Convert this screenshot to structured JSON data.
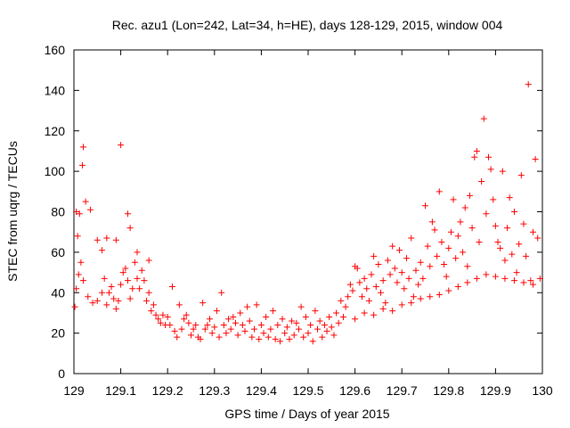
{
  "chart_data": {
    "type": "scatter",
    "title": "Rec. azu1 (Lon=242, Lat=34, h=HE), days 128-129, 2015, window 004",
    "xlabel": "GPS time / Days of year 2015",
    "ylabel": "STEC from uqrg / TECUs",
    "xlim": [
      129,
      130
    ],
    "ylim": [
      0,
      160
    ],
    "xticks": [
      "129",
      "129.1",
      "129.2",
      "129.3",
      "129.4",
      "129.5",
      "129.6",
      "129.7",
      "129.8",
      "129.9",
      "130"
    ],
    "yticks": [
      "0",
      "20",
      "40",
      "60",
      "80",
      "100",
      "120",
      "140",
      "160"
    ],
    "marker": "+",
    "color": "#ff0000",
    "grid": false,
    "legend": "none",
    "series": [
      {
        "points": [
          [
            129.005,
            80
          ],
          [
            129.008,
            68
          ],
          [
            129.012,
            79
          ],
          [
            129.018,
            103
          ],
          [
            129.02,
            112
          ],
          [
            129.025,
            85
          ],
          [
            129.035,
            81
          ],
          [
            129.05,
            66
          ],
          [
            129.06,
            61
          ],
          [
            129.07,
            67
          ],
          [
            129.09,
            66
          ],
          [
            129.1,
            113
          ],
          [
            129.115,
            79
          ],
          [
            129.12,
            72
          ],
          [
            129.135,
            60
          ],
          [
            129.16,
            56
          ],
          [
            129.002,
            33
          ],
          [
            129.005,
            42
          ],
          [
            129.01,
            49
          ],
          [
            129.015,
            55
          ],
          [
            129.02,
            46
          ],
          [
            129.03,
            38
          ],
          [
            129.04,
            35
          ],
          [
            129.05,
            36
          ],
          [
            129.06,
            40
          ],
          [
            129.065,
            47
          ],
          [
            129.07,
            34
          ],
          [
            129.075,
            40
          ],
          [
            129.08,
            43
          ],
          [
            129.085,
            37
          ],
          [
            129.09,
            32
          ],
          [
            129.095,
            36
          ],
          [
            129.1,
            44
          ],
          [
            129.105,
            50
          ],
          [
            129.11,
            52
          ],
          [
            129.115,
            46
          ],
          [
            129.12,
            37
          ],
          [
            129.125,
            42
          ],
          [
            129.13,
            55
          ],
          [
            129.135,
            47
          ],
          [
            129.14,
            42
          ],
          [
            129.145,
            51
          ],
          [
            129.15,
            46
          ],
          [
            129.155,
            36
          ],
          [
            129.16,
            40
          ],
          [
            129.165,
            31
          ],
          [
            129.17,
            34
          ],
          [
            129.175,
            29
          ],
          [
            129.18,
            27
          ],
          [
            129.185,
            25
          ],
          [
            129.19,
            29
          ],
          [
            129.195,
            24
          ],
          [
            129.2,
            28
          ],
          [
            129.205,
            24
          ],
          [
            129.21,
            43
          ],
          [
            129.215,
            21
          ],
          [
            129.22,
            18
          ],
          [
            129.225,
            34
          ],
          [
            129.23,
            22
          ],
          [
            129.235,
            27
          ],
          [
            129.24,
            29
          ],
          [
            129.245,
            25
          ],
          [
            129.25,
            19
          ],
          [
            129.255,
            22
          ],
          [
            129.26,
            24
          ],
          [
            129.265,
            18
          ],
          [
            129.27,
            17
          ],
          [
            129.275,
            35
          ],
          [
            129.28,
            22
          ],
          [
            129.285,
            24
          ],
          [
            129.29,
            27
          ],
          [
            129.295,
            20
          ],
          [
            129.3,
            23
          ],
          [
            129.305,
            31
          ],
          [
            129.31,
            18
          ],
          [
            129.315,
            40
          ],
          [
            129.32,
            24
          ],
          [
            129.325,
            20
          ],
          [
            129.33,
            27
          ],
          [
            129.335,
            22
          ],
          [
            129.34,
            28
          ],
          [
            129.345,
            25
          ],
          [
            129.35,
            19
          ],
          [
            129.355,
            30
          ],
          [
            129.36,
            24
          ],
          [
            129.365,
            21
          ],
          [
            129.37,
            33
          ],
          [
            129.375,
            26
          ],
          [
            129.38,
            18
          ],
          [
            129.385,
            22
          ],
          [
            129.39,
            34
          ],
          [
            129.395,
            17
          ],
          [
            129.4,
            24
          ],
          [
            129.405,
            20
          ],
          [
            129.41,
            28
          ],
          [
            129.415,
            18
          ],
          [
            129.42,
            22
          ],
          [
            129.425,
            31
          ],
          [
            129.43,
            17
          ],
          [
            129.435,
            24
          ],
          [
            129.44,
            16
          ],
          [
            129.445,
            27
          ],
          [
            129.45,
            20
          ],
          [
            129.455,
            23
          ],
          [
            129.46,
            17
          ],
          [
            129.465,
            26
          ],
          [
            129.47,
            19
          ],
          [
            129.475,
            25
          ],
          [
            129.48,
            22
          ],
          [
            129.485,
            33
          ],
          [
            129.49,
            18
          ],
          [
            129.495,
            28
          ],
          [
            129.5,
            20
          ],
          [
            129.505,
            24
          ],
          [
            129.51,
            16
          ],
          [
            129.515,
            31
          ],
          [
            129.52,
            22
          ],
          [
            129.525,
            26
          ],
          [
            129.53,
            18
          ],
          [
            129.535,
            24
          ],
          [
            129.54,
            21
          ],
          [
            129.545,
            28
          ],
          [
            129.55,
            23
          ],
          [
            129.555,
            19
          ],
          [
            129.56,
            30
          ],
          [
            129.565,
            25
          ],
          [
            129.57,
            36
          ],
          [
            129.575,
            28
          ],
          [
            129.58,
            33
          ],
          [
            129.585,
            38
          ],
          [
            129.59,
            44
          ],
          [
            129.595,
            41
          ],
          [
            129.6,
            53
          ],
          [
            129.605,
            52
          ],
          [
            129.61,
            45
          ],
          [
            129.615,
            38
          ],
          [
            129.62,
            47
          ],
          [
            129.625,
            42
          ],
          [
            129.63,
            36
          ],
          [
            129.635,
            49
          ],
          [
            129.64,
            58
          ],
          [
            129.645,
            43
          ],
          [
            129.65,
            54
          ],
          [
            129.655,
            40
          ],
          [
            129.66,
            46
          ],
          [
            129.665,
            35
          ],
          [
            129.67,
            56
          ],
          [
            129.675,
            49
          ],
          [
            129.68,
            63
          ],
          [
            129.685,
            52
          ],
          [
            129.69,
            45
          ],
          [
            129.695,
            61
          ],
          [
            129.7,
            50
          ],
          [
            129.705,
            42
          ],
          [
            129.71,
            57
          ],
          [
            129.715,
            47
          ],
          [
            129.72,
            67
          ],
          [
            129.725,
            38
          ],
          [
            129.73,
            51
          ],
          [
            129.735,
            44
          ],
          [
            129.74,
            55
          ],
          [
            129.745,
            47
          ],
          [
            129.75,
            83
          ],
          [
            129.755,
            63
          ],
          [
            129.76,
            53
          ],
          [
            129.765,
            75
          ],
          [
            129.77,
            71
          ],
          [
            129.775,
            58
          ],
          [
            129.78,
            90
          ],
          [
            129.785,
            65
          ],
          [
            129.79,
            54
          ],
          [
            129.795,
            48
          ],
          [
            129.8,
            62
          ],
          [
            129.805,
            70
          ],
          [
            129.81,
            86
          ],
          [
            129.815,
            57
          ],
          [
            129.82,
            68
          ],
          [
            129.825,
            75
          ],
          [
            129.83,
            60
          ],
          [
            129.835,
            82
          ],
          [
            129.84,
            53
          ],
          [
            129.845,
            88
          ],
          [
            129.85,
            72
          ],
          [
            129.855,
            107
          ],
          [
            129.86,
            110
          ],
          [
            129.865,
            65
          ],
          [
            129.87,
            95
          ],
          [
            129.875,
            126
          ],
          [
            129.88,
            79
          ],
          [
            129.885,
            107
          ],
          [
            129.89,
            101
          ],
          [
            129.895,
            86
          ],
          [
            129.9,
            73
          ],
          [
            129.905,
            65
          ],
          [
            129.91,
            62
          ],
          [
            129.915,
            100
          ],
          [
            129.92,
            56
          ],
          [
            129.925,
            72
          ],
          [
            129.93,
            87
          ],
          [
            129.935,
            59
          ],
          [
            129.94,
            80
          ],
          [
            129.945,
            50
          ],
          [
            129.95,
            64
          ],
          [
            129.955,
            98
          ],
          [
            129.96,
            74
          ],
          [
            129.965,
            58
          ],
          [
            129.97,
            143
          ],
          [
            129.975,
            46
          ],
          [
            129.98,
            70
          ],
          [
            129.985,
            106
          ],
          [
            129.99,
            67
          ],
          [
            129.995,
            47
          ],
          [
            129.6,
            27
          ],
          [
            129.62,
            30
          ],
          [
            129.64,
            29
          ],
          [
            129.66,
            32
          ],
          [
            129.68,
            31
          ],
          [
            129.7,
            34
          ],
          [
            129.72,
            35
          ],
          [
            129.74,
            37
          ],
          [
            129.76,
            38
          ],
          [
            129.78,
            39
          ],
          [
            129.8,
            41
          ],
          [
            129.82,
            43
          ],
          [
            129.84,
            45
          ],
          [
            129.86,
            47
          ],
          [
            129.88,
            49
          ],
          [
            129.9,
            48
          ],
          [
            129.92,
            47
          ],
          [
            129.94,
            46
          ],
          [
            129.96,
            45
          ],
          [
            129.98,
            44
          ]
        ]
      }
    ]
  }
}
